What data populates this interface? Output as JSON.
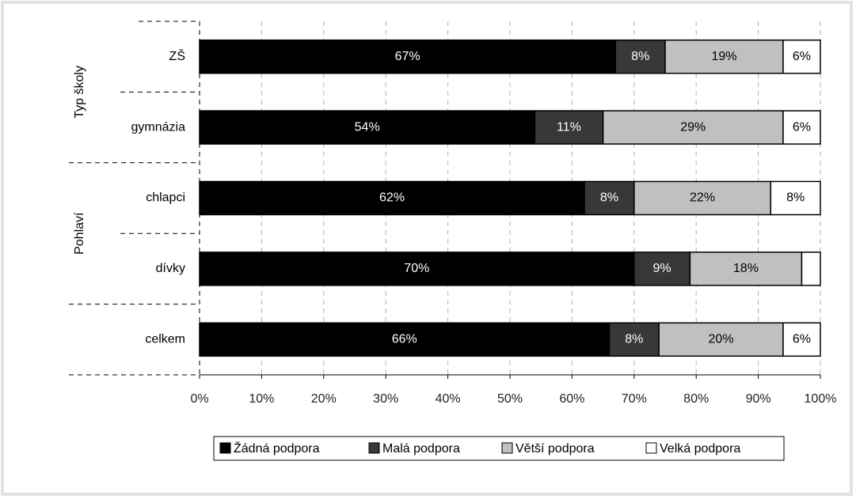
{
  "chart_data": {
    "type": "stacked-barh",
    "categories": [
      "ZŠ",
      "gymnázia",
      "chlapci",
      "dívky",
      "celkem"
    ],
    "groups": [
      {
        "name": "Typ školy",
        "size": 2
      },
      {
        "name": "Pohlaví",
        "size": 2
      }
    ],
    "series": [
      {
        "name": "Žádná podpora",
        "color": "#000000",
        "label_color": "#ffffff",
        "values": [
          67,
          54,
          62,
          70,
          66
        ],
        "value_labels": [
          "67%",
          "54%",
          "62%",
          "70%",
          "66%"
        ]
      },
      {
        "name": "Malá podpora",
        "color": "#383838",
        "label_color": "#ffffff",
        "values": [
          8,
          11,
          8,
          9,
          8
        ],
        "value_labels": [
          "8%",
          "11%",
          "8%",
          "9%",
          "8%"
        ]
      },
      {
        "name": "Větší podpora",
        "color": "#c0c0c0",
        "label_color": "#000000",
        "values": [
          19,
          29,
          22,
          18,
          20
        ],
        "value_labels": [
          "19%",
          "29%",
          "22%",
          "18%",
          "20%"
        ]
      },
      {
        "name": "Velká podpora",
        "color": "#ffffff",
        "label_color": "#000000",
        "values": [
          6,
          6,
          8,
          3,
          6
        ],
        "value_labels": [
          "6%",
          "6%",
          "8%",
          null,
          "6%"
        ]
      }
    ],
    "xlim": [
      0,
      100
    ],
    "xticks": [
      {
        "value": 0,
        "label": "0%"
      },
      {
        "value": 10,
        "label": "10%"
      },
      {
        "value": 20,
        "label": "20%"
      },
      {
        "value": 30,
        "label": "30%"
      },
      {
        "value": 40,
        "label": "40%"
      },
      {
        "value": 50,
        "label": "50%"
      },
      {
        "value": 60,
        "label": "60%"
      },
      {
        "value": 70,
        "label": "70%"
      },
      {
        "value": 80,
        "label": "80%"
      },
      {
        "value": 90,
        "label": "90%"
      },
      {
        "value": 100,
        "label": "100%"
      }
    ],
    "grid": true,
    "legend": "bottom"
  }
}
